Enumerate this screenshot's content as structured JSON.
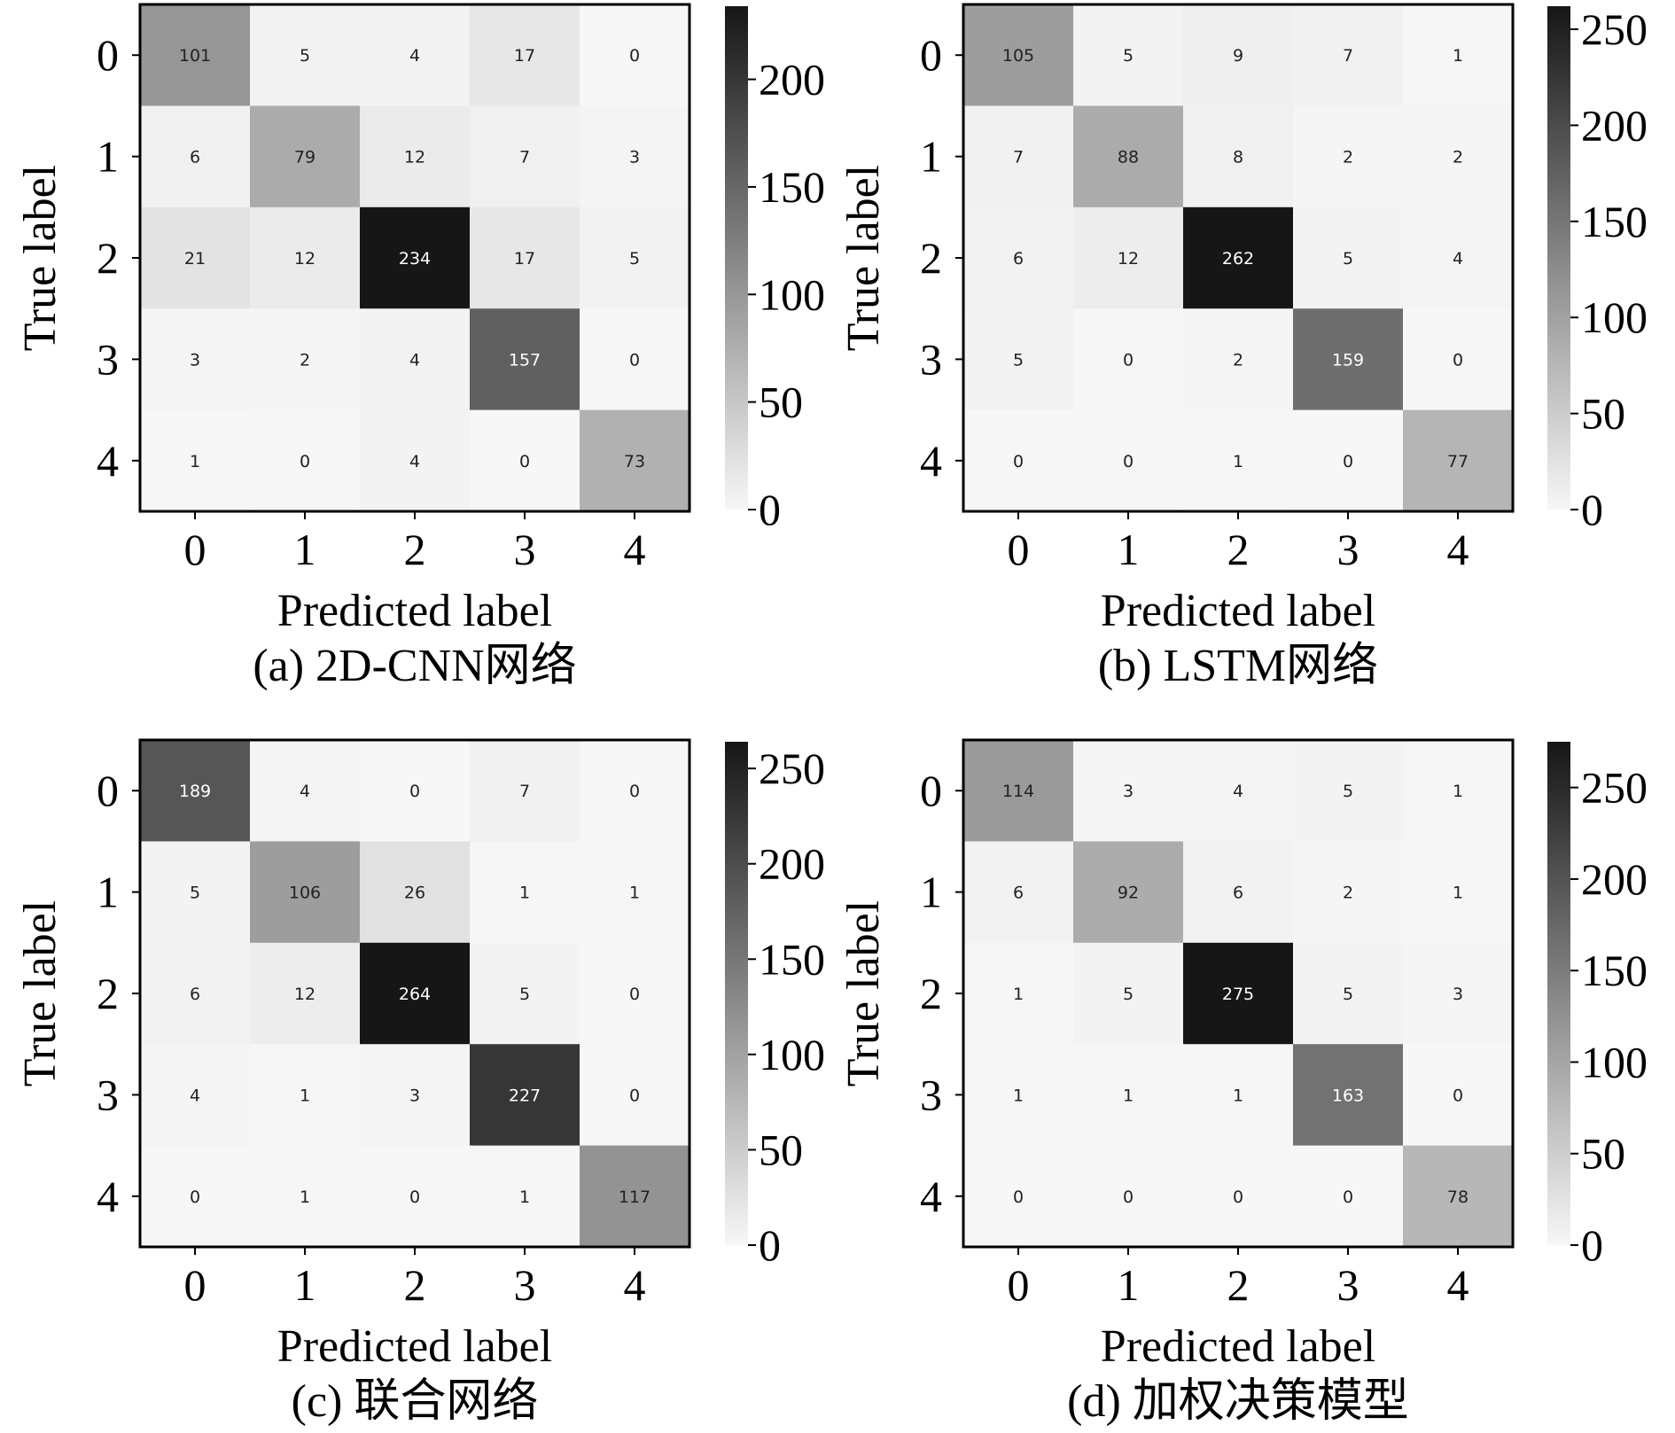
{
  "figure": {
    "colors": {
      "low": "#f7f7f7",
      "high": "#161616",
      "text_dark": "#222222",
      "text_light": "#ffffff",
      "frame": "#000000"
    }
  },
  "chart_data": [
    {
      "type": "heatmap",
      "caption": "(a) 2D-CNN网络",
      "xlabel": "Predicted label",
      "ylabel": "True label",
      "x_ticks": [
        "0",
        "1",
        "2",
        "3",
        "4"
      ],
      "y_ticks": [
        "0",
        "1",
        "2",
        "3",
        "4"
      ],
      "matrix": [
        [
          101,
          5,
          4,
          17,
          0
        ],
        [
          6,
          79,
          12,
          7,
          3
        ],
        [
          21,
          12,
          234,
          17,
          5
        ],
        [
          3,
          2,
          4,
          157,
          0
        ],
        [
          1,
          0,
          4,
          0,
          73
        ]
      ],
      "colorbar": {
        "min": 0,
        "max": 234,
        "ticks": [
          0,
          50,
          100,
          150,
          200
        ],
        "tick_labels": [
          "0",
          "50",
          "100",
          "150",
          "200"
        ]
      }
    },
    {
      "type": "heatmap",
      "caption": "(b) LSTM网络",
      "xlabel": "Predicted label",
      "ylabel": "True label",
      "x_ticks": [
        "0",
        "1",
        "2",
        "3",
        "4"
      ],
      "y_ticks": [
        "0",
        "1",
        "2",
        "3",
        "4"
      ],
      "matrix": [
        [
          105,
          5,
          9,
          7,
          1
        ],
        [
          7,
          88,
          8,
          2,
          2
        ],
        [
          6,
          12,
          262,
          5,
          4
        ],
        [
          5,
          0,
          2,
          159,
          0
        ],
        [
          0,
          0,
          1,
          0,
          77
        ]
      ],
      "colorbar": {
        "min": 0,
        "max": 262,
        "ticks": [
          0,
          50,
          100,
          150,
          200,
          250
        ],
        "tick_labels": [
          "0",
          "50",
          "100",
          "150",
          "200",
          "250"
        ]
      }
    },
    {
      "type": "heatmap",
      "caption": "(c) 联合网络",
      "xlabel": "Predicted label",
      "ylabel": "True label",
      "x_ticks": [
        "0",
        "1",
        "2",
        "3",
        "4"
      ],
      "y_ticks": [
        "0",
        "1",
        "2",
        "3",
        "4"
      ],
      "matrix": [
        [
          189,
          4,
          0,
          7,
          0
        ],
        [
          5,
          106,
          26,
          1,
          1
        ],
        [
          6,
          12,
          264,
          5,
          0
        ],
        [
          4,
          1,
          3,
          227,
          0
        ],
        [
          0,
          1,
          0,
          1,
          117
        ]
      ],
      "colorbar": {
        "min": 0,
        "max": 264,
        "ticks": [
          0,
          50,
          100,
          150,
          200,
          250
        ],
        "tick_labels": [
          "0",
          "50",
          "100",
          "150",
          "200",
          "250"
        ]
      }
    },
    {
      "type": "heatmap",
      "caption": "(d) 加权决策模型",
      "xlabel": "Predicted label",
      "ylabel": "True label",
      "x_ticks": [
        "0",
        "1",
        "2",
        "3",
        "4"
      ],
      "y_ticks": [
        "0",
        "1",
        "2",
        "3",
        "4"
      ],
      "matrix": [
        [
          114,
          3,
          4,
          5,
          1
        ],
        [
          6,
          92,
          6,
          2,
          1
        ],
        [
          1,
          5,
          275,
          5,
          3
        ],
        [
          1,
          1,
          1,
          163,
          0
        ],
        [
          0,
          0,
          0,
          0,
          78
        ]
      ],
      "colorbar": {
        "min": 0,
        "max": 275,
        "ticks": [
          0,
          50,
          100,
          150,
          200,
          250
        ],
        "tick_labels": [
          "0",
          "50",
          "100",
          "150",
          "200",
          "250"
        ]
      }
    }
  ]
}
